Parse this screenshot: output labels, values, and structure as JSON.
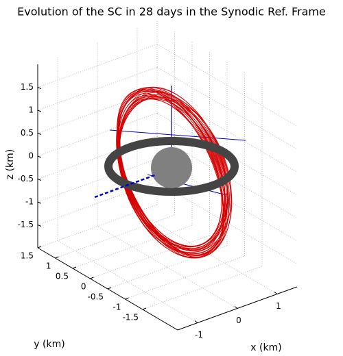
{
  "chart_data": {
    "type": "line3d",
    "title": "Evolution of the SC in 28 days in the Synodic Ref. Frame",
    "xlabel": "x (km)",
    "ylabel": "y (km)",
    "zlabel": "z (km)",
    "xlim": [
      -1.5,
      1.5
    ],
    "ylim": [
      -2.5,
      1.5
    ],
    "zlim": [
      -2,
      2
    ],
    "xticks": [
      -1,
      0,
      1
    ],
    "yticks": [
      -1.5,
      -1,
      -0.5,
      0,
      0.5,
      1,
      1.5
    ],
    "zticks": [
      -1.5,
      -1,
      -0.5,
      0,
      0.5,
      1,
      1.5
    ],
    "grid": true
  }
}
